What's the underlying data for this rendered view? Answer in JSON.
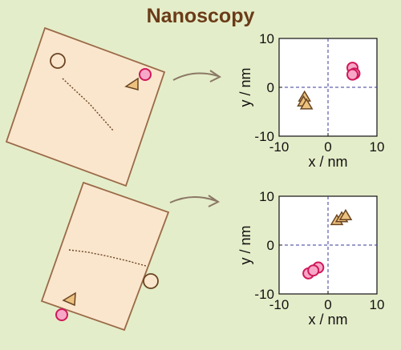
{
  "title": "Nanoscopy",
  "colors": {
    "background": "#e4edc9",
    "paper": "#fae6cd",
    "paper_edge": "#9a6a48",
    "circle_fill": "#f7a8c8",
    "circle_edge": "#d0185a",
    "triangle_fill": "#ecc27e",
    "triangle_edge": "#6a4422",
    "arrow": "#8a7866"
  },
  "chart_data": [
    {
      "type": "scatter",
      "xlabel": "x / nm",
      "ylabel": "y / nm",
      "xlim": [
        -10,
        10
      ],
      "ylim": [
        -10,
        10
      ],
      "xticks": [
        "-10",
        "0",
        "10"
      ],
      "yticks": [
        "10",
        "0",
        "-10"
      ],
      "grid": "dashed lines at x=0 and y=0",
      "series": [
        {
          "marker": "triangle",
          "points": [
            [
              -4.8,
              -2.0
            ],
            [
              -5.0,
              -3.0
            ],
            [
              -4.4,
              -3.6
            ]
          ]
        },
        {
          "marker": "circle",
          "points": [
            [
              5.0,
              4.0
            ],
            [
              5.4,
              2.8
            ],
            [
              5.0,
              2.6
            ]
          ]
        }
      ]
    },
    {
      "type": "scatter",
      "xlabel": "x / nm",
      "ylabel": "y / nm",
      "xlim": [
        -10,
        10
      ],
      "ylim": [
        -10,
        10
      ],
      "xticks": [
        "-10",
        "0",
        "10"
      ],
      "yticks": [
        "10",
        "0",
        "-10"
      ],
      "grid": "dashed lines at x=0 and y=0",
      "series": [
        {
          "marker": "triangle",
          "points": [
            [
              1.8,
              5.0
            ],
            [
              2.8,
              5.6
            ],
            [
              3.6,
              6.0
            ]
          ]
        },
        {
          "marker": "circle",
          "points": [
            [
              -4.0,
              -5.8
            ],
            [
              -2.0,
              -4.6
            ],
            [
              -3.0,
              -5.2
            ]
          ]
        }
      ]
    }
  ]
}
